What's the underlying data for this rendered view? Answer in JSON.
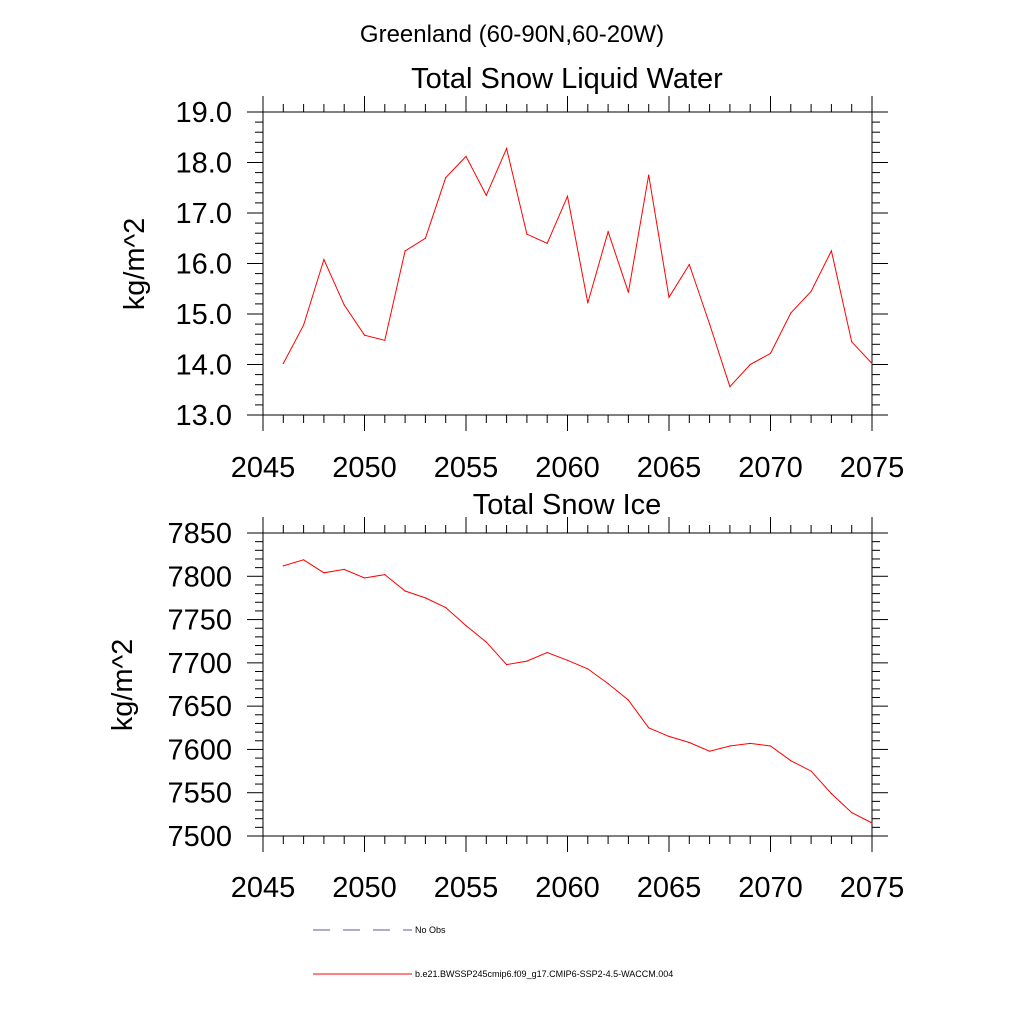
{
  "page": {
    "title": "Greenland (60-90N,60-20W)"
  },
  "chart_data": [
    {
      "type": "line",
      "title": "Total Snow Liquid Water",
      "xlabel": "",
      "ylabel": "kg/m^2",
      "xlim": [
        2045,
        2075
      ],
      "ylim": [
        13.0,
        19.0
      ],
      "x_ticks": [
        "2045",
        "2050",
        "2055",
        "2060",
        "2065",
        "2070",
        "2075"
      ],
      "y_ticks": [
        "13.0",
        "14.0",
        "15.0",
        "16.0",
        "17.0",
        "18.0",
        "19.0"
      ],
      "grid": false,
      "series": [
        {
          "name": "b.e21.BWSSP245cmip6.f09_g17.CMIP6-SSP2-4.5-WACCM.004",
          "color": "#ff0000",
          "x": [
            2046,
            2047,
            2048,
            2049,
            2050,
            2051,
            2052,
            2053,
            2054,
            2055,
            2056,
            2057,
            2058,
            2059,
            2060,
            2061,
            2062,
            2063,
            2064,
            2065,
            2066,
            2067,
            2068,
            2069,
            2070,
            2071,
            2072,
            2073,
            2074,
            2075
          ],
          "y": [
            14.02,
            14.78,
            16.08,
            15.18,
            14.58,
            14.48,
            16.25,
            16.5,
            17.7,
            18.12,
            17.35,
            18.28,
            16.58,
            16.4,
            17.33,
            15.22,
            16.63,
            15.43,
            17.75,
            15.33,
            15.98,
            14.8,
            13.56,
            14.0,
            14.22,
            15.02,
            15.45,
            16.25,
            14.45,
            14.02
          ]
        }
      ]
    },
    {
      "type": "line",
      "title": "Total Snow Ice",
      "xlabel": "",
      "ylabel": "kg/m^2",
      "xlim": [
        2045,
        2075
      ],
      "ylim": [
        7500,
        7850
      ],
      "x_ticks": [
        "2045",
        "2050",
        "2055",
        "2060",
        "2065",
        "2070",
        "2075"
      ],
      "y_ticks": [
        "7500",
        "7550",
        "7600",
        "7650",
        "7700",
        "7750",
        "7800",
        "7850"
      ],
      "grid": false,
      "series": [
        {
          "name": "b.e21.BWSSP245cmip6.f09_g17.CMIP6-SSP2-4.5-WACCM.004",
          "color": "#ff0000",
          "x": [
            2046,
            2047,
            2048,
            2049,
            2050,
            2051,
            2052,
            2053,
            2054,
            2055,
            2056,
            2057,
            2058,
            2059,
            2060,
            2061,
            2062,
            2063,
            2064,
            2065,
            2066,
            2067,
            2068,
            2069,
            2070,
            2071,
            2072,
            2073,
            2074,
            2075
          ],
          "y": [
            7812,
            7819,
            7804,
            7808,
            7798,
            7802,
            7783,
            7775,
            7764,
            7743,
            7724,
            7698,
            7702,
            7712,
            7703,
            7693,
            7676,
            7657,
            7625,
            7615,
            7608,
            7598,
            7604,
            7607,
            7604,
            7587,
            7575,
            7549,
            7527,
            7515
          ]
        }
      ]
    }
  ],
  "legend": {
    "placement": "bottom",
    "items": [
      {
        "label": "No Obs",
        "color": "#5a5aa0",
        "style": "dashed"
      },
      {
        "label": "b.e21.BWSSP245cmip6.f09_g17.CMIP6-SSP2-4.5-WACCM.004",
        "color": "#ff0000",
        "style": "solid"
      }
    ]
  }
}
